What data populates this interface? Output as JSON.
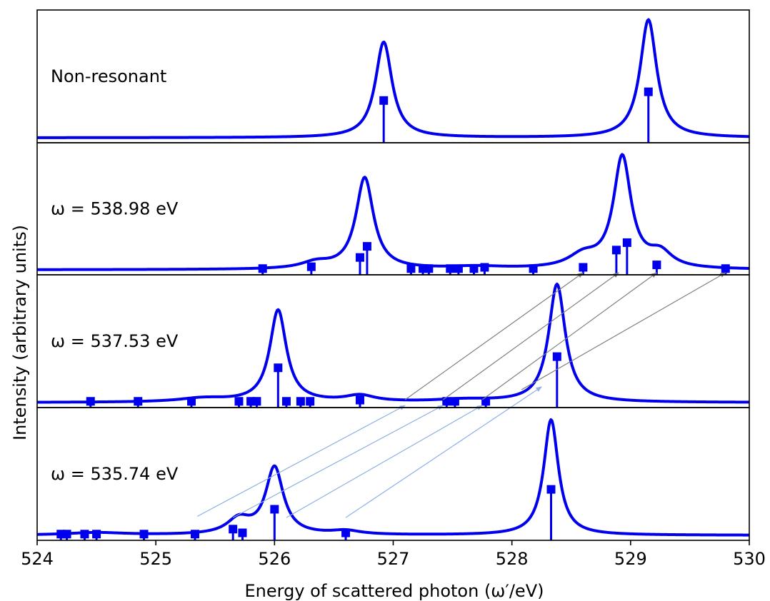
{
  "chart_data": {
    "type": "line",
    "xlabel": "Energy of scattered photon (ω′/eV)",
    "ylabel": "Intensity (arbitrary units)",
    "xlim": [
      524,
      530
    ],
    "xticks": [
      "524",
      "525",
      "526",
      "527",
      "528",
      "529",
      "530"
    ],
    "colors": {
      "spectrum": "#0000ee",
      "stick": "#0000ee",
      "arrow_gray": "#808080",
      "arrow_blue": "#8fb0e3"
    },
    "panels": [
      {
        "label": "Non-resonant",
        "peaks": [
          {
            "x": 526.92,
            "h": 0.77,
            "w": 0.085
          },
          {
            "x": 529.15,
            "h": 0.95,
            "w": 0.085
          }
        ],
        "sticks": [
          {
            "x": 526.92,
            "y": 0.3
          },
          {
            "x": 529.15,
            "y": 0.37
          }
        ]
      },
      {
        "label": "ω = 538.98 eV",
        "peaks": [
          {
            "x": 526.76,
            "h": 0.74,
            "w": 0.09
          },
          {
            "x": 528.93,
            "h": 0.9,
            "w": 0.09
          },
          {
            "x": 526.35,
            "h": 0.05,
            "w": 0.15
          },
          {
            "x": 528.6,
            "h": 0.1,
            "w": 0.15
          },
          {
            "x": 529.25,
            "h": 0.12,
            "w": 0.12
          },
          {
            "x": 527.7,
            "h": 0.02,
            "w": 0.3
          }
        ],
        "sticks": [
          {
            "x": 525.9,
            "y": 0.01
          },
          {
            "x": 526.31,
            "y": 0.025
          },
          {
            "x": 526.72,
            "y": 0.1
          },
          {
            "x": 526.78,
            "y": 0.19
          },
          {
            "x": 527.15,
            "y": 0.01
          },
          {
            "x": 527.25,
            "y": 0.01
          },
          {
            "x": 527.3,
            "y": 0.01
          },
          {
            "x": 527.48,
            "y": 0.01
          },
          {
            "x": 527.55,
            "y": 0.01
          },
          {
            "x": 527.68,
            "y": 0.01
          },
          {
            "x": 527.77,
            "y": 0.02
          },
          {
            "x": 528.18,
            "y": 0.01
          },
          {
            "x": 528.6,
            "y": 0.02
          },
          {
            "x": 528.88,
            "y": 0.16
          },
          {
            "x": 528.97,
            "y": 0.22
          },
          {
            "x": 529.22,
            "y": 0.04
          },
          {
            "x": 529.8,
            "y": 0.01
          }
        ]
      },
      {
        "label": "ω = 537.53 eV",
        "peaks": [
          {
            "x": 526.03,
            "h": 0.74,
            "w": 0.085
          },
          {
            "x": 528.38,
            "h": 0.95,
            "w": 0.085
          },
          {
            "x": 525.4,
            "h": 0.03,
            "w": 0.25
          },
          {
            "x": 526.72,
            "h": 0.05,
            "w": 0.15
          },
          {
            "x": 527.6,
            "h": 0.02,
            "w": 0.3
          }
        ],
        "sticks": [
          {
            "x": 524.45,
            "y": 0.01
          },
          {
            "x": 524.85,
            "y": 0.01
          },
          {
            "x": 525.3,
            "y": 0.01
          },
          {
            "x": 525.7,
            "y": 0.01
          },
          {
            "x": 525.8,
            "y": 0.01
          },
          {
            "x": 525.85,
            "y": 0.01
          },
          {
            "x": 526.03,
            "y": 0.28
          },
          {
            "x": 526.1,
            "y": 0.01
          },
          {
            "x": 526.22,
            "y": 0.01
          },
          {
            "x": 526.3,
            "y": 0.01
          },
          {
            "x": 526.72,
            "y": 0.02
          },
          {
            "x": 527.45,
            "y": 0.01
          },
          {
            "x": 527.52,
            "y": 0.01
          },
          {
            "x": 527.78,
            "y": 0.01
          },
          {
            "x": 528.38,
            "y": 0.37
          }
        ]
      },
      {
        "label": "ω = 535.74 eV",
        "peaks": [
          {
            "x": 526.0,
            "h": 0.54,
            "w": 0.09
          },
          {
            "x": 528.33,
            "h": 0.93,
            "w": 0.075
          },
          {
            "x": 525.7,
            "h": 0.12,
            "w": 0.12
          },
          {
            "x": 526.6,
            "h": 0.03,
            "w": 0.15
          },
          {
            "x": 524.5,
            "h": 0.02,
            "w": 0.3
          }
        ],
        "sticks": [
          {
            "x": 524.2,
            "y": 0.01
          },
          {
            "x": 524.25,
            "y": 0.01
          },
          {
            "x": 524.4,
            "y": 0.01
          },
          {
            "x": 524.5,
            "y": 0.01
          },
          {
            "x": 524.9,
            "y": 0.01
          },
          {
            "x": 525.33,
            "y": 0.01
          },
          {
            "x": 525.65,
            "y": 0.05
          },
          {
            "x": 525.73,
            "y": 0.02
          },
          {
            "x": 526.0,
            "y": 0.21
          },
          {
            "x": 526.6,
            "y": 0.02
          },
          {
            "x": 528.33,
            "y": 0.37
          }
        ]
      }
    ],
    "arrows": [
      {
        "from_panel": 2,
        "from_x": 527.1,
        "from_y": 0.0,
        "to_panel": 1,
        "to_x": 528.6,
        "to_y": 0.0,
        "color": "gray"
      },
      {
        "from_panel": 2,
        "from_x": 527.42,
        "from_y": 0.0,
        "to_panel": 1,
        "to_x": 528.9,
        "to_y": 0.0,
        "color": "gray"
      },
      {
        "from_panel": 2,
        "from_x": 527.75,
        "from_y": 0.0,
        "to_panel": 1,
        "to_x": 529.22,
        "to_y": 0.0,
        "color": "gray"
      },
      {
        "from_panel": 2,
        "from_x": 528.08,
        "from_y": 0.08,
        "to_panel": 1,
        "to_x": 529.8,
        "to_y": 0.0,
        "color": "gray"
      },
      {
        "from_panel": 3,
        "from_x": 525.35,
        "from_y": 0.13,
        "to_panel": 2,
        "to_x": 527.1,
        "to_y": 0.0,
        "color": "blue"
      },
      {
        "from_panel": 3,
        "from_x": 525.65,
        "from_y": 0.12,
        "to_panel": 2,
        "to_x": 527.42,
        "to_y": 0.0,
        "color": "blue"
      },
      {
        "from_panel": 3,
        "from_x": 526.1,
        "from_y": 0.12,
        "to_panel": 2,
        "to_x": 527.75,
        "to_y": 0.0,
        "color": "blue"
      },
      {
        "from_panel": 3,
        "from_x": 526.6,
        "from_y": 0.12,
        "to_panel": 2,
        "to_x": 528.25,
        "to_y": 0.15,
        "color": "blue"
      }
    ]
  }
}
